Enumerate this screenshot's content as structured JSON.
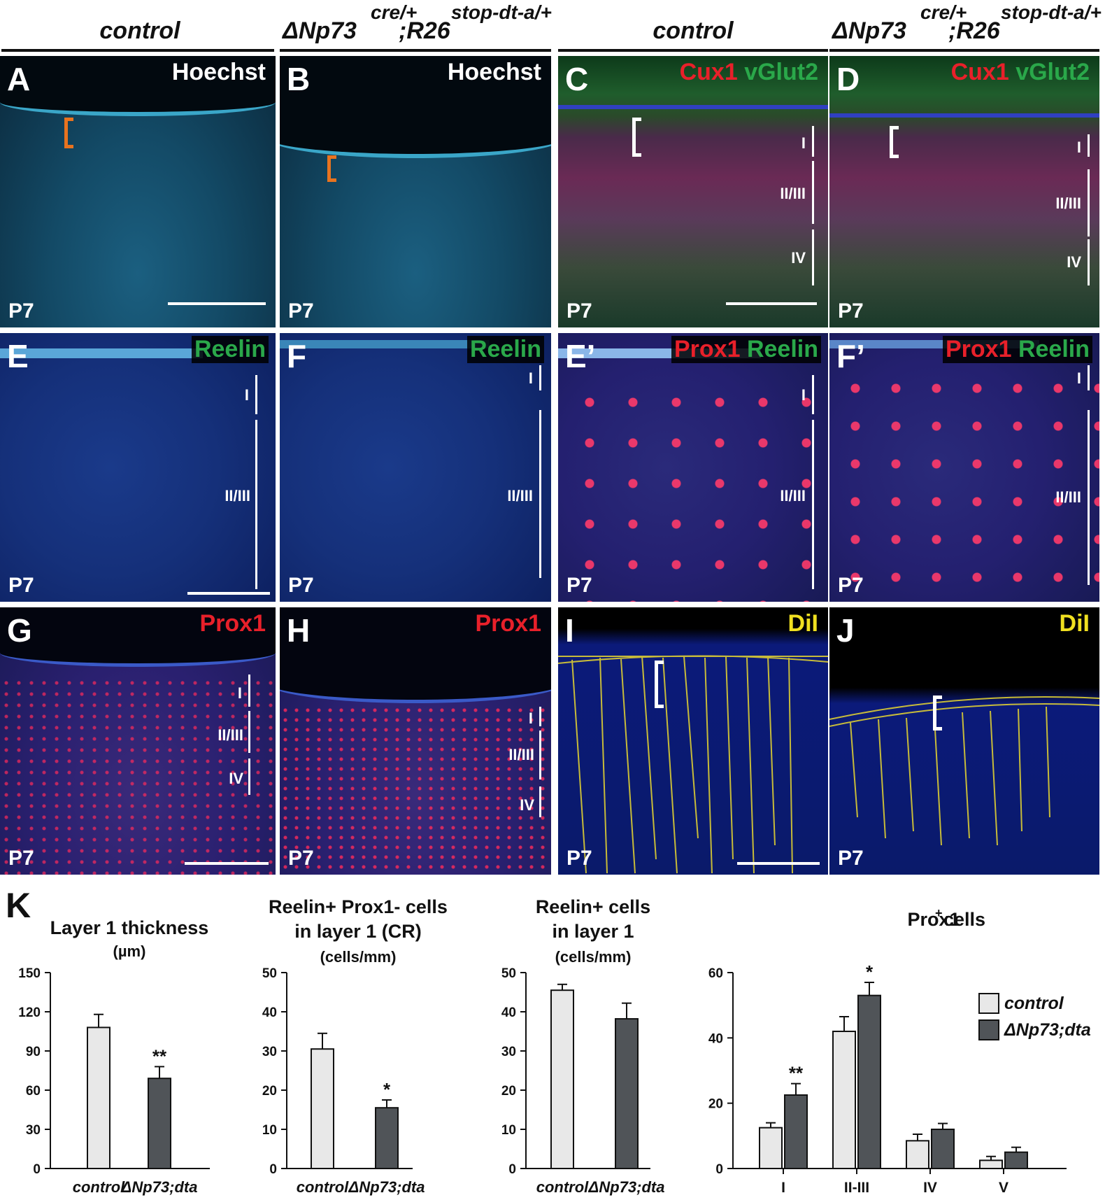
{
  "headers": [
    {
      "main": "control"
    },
    {
      "main": "ΔNp73",
      "sup1": "cre/+",
      "mid": ";R26",
      "sup2": "stop-dt-a/+"
    },
    {
      "main": "control"
    },
    {
      "main": "ΔNp73",
      "sup1": "cre/+",
      "mid": ";R26",
      "sup2": "stop-dt-a/+"
    }
  ],
  "panels": [
    {
      "letter": "A",
      "stain": "Hoechst",
      "age": "P7"
    },
    {
      "letter": "B",
      "stain": "Hoechst",
      "age": "P7"
    },
    {
      "letter": "C",
      "stain_red": "Cux1",
      "stain_green": "vGlut2",
      "age": "P7",
      "layers": [
        "I",
        "II/III",
        "IV"
      ]
    },
    {
      "letter": "D",
      "stain_red": "Cux1",
      "stain_green": "vGlut2",
      "age": "P7",
      "layers": [
        "I",
        "II/III",
        "IV"
      ]
    },
    {
      "letter": "E",
      "stain_green": "Reelin",
      "age": "P7",
      "layers": [
        "I",
        "II/III"
      ]
    },
    {
      "letter": "F",
      "stain_green": "Reelin",
      "age": "P7",
      "layers": [
        "I",
        "II/III"
      ]
    },
    {
      "letter": "E’",
      "stain_red": "Prox1",
      "stain_green": "Reelin",
      "age": "P7",
      "layers": [
        "I",
        "II/III"
      ]
    },
    {
      "letter": "F’",
      "stain_red": "Prox1",
      "stain_green": "Reelin",
      "age": "P7",
      "layers": [
        "I",
        "II/III"
      ]
    },
    {
      "letter": "G",
      "stain_red": "Prox1",
      "age": "P7",
      "layers": [
        "I",
        "II/III",
        "IV"
      ]
    },
    {
      "letter": "H",
      "stain_red": "Prox1",
      "age": "P7",
      "layers": [
        "I",
        "II/III",
        "IV"
      ]
    },
    {
      "letter": "I",
      "stain_yellow": "DiI",
      "age": "P7"
    },
    {
      "letter": "J",
      "stain_yellow": "DiI",
      "age": "P7"
    }
  ],
  "colors": {
    "hoechst": "#0a2a3a",
    "red_label": "#e8202a",
    "green_label": "#2aa84a",
    "yellow_label": "#f0e020",
    "bar_control": "#e8e8e8",
    "bar_mutant": "#505458"
  },
  "k_label": "K",
  "chart_data": [
    {
      "type": "bar",
      "title": "Layer 1 thickness",
      "subtitle": "(µm)",
      "categories": [
        "control",
        "ΔNp73;dta"
      ],
      "values": [
        108,
        69
      ],
      "errors": [
        10,
        9
      ],
      "significance": [
        "",
        "**"
      ],
      "ylim": [
        0,
        150
      ],
      "yticks": [
        0,
        30,
        60,
        90,
        120,
        150
      ]
    },
    {
      "type": "bar",
      "title": "Reelin+ Prox1- cells",
      "title2": "in layer 1 (CR)",
      "subtitle": "(cells/mm)",
      "categories": [
        "control",
        "ΔNp73;dta"
      ],
      "values": [
        30.5,
        15.5
      ],
      "errors": [
        4,
        2
      ],
      "significance": [
        "",
        "*"
      ],
      "ylim": [
        0,
        50
      ],
      "yticks": [
        0,
        10,
        20,
        30,
        40,
        50
      ]
    },
    {
      "type": "bar",
      "title": "Reelin+ cells",
      "title2": "in layer 1",
      "subtitle": "(cells/mm)",
      "categories": [
        "control",
        "ΔNp73;dta"
      ],
      "values": [
        45.5,
        38.2
      ],
      "errors": [
        1.5,
        4
      ],
      "significance": [
        "",
        ""
      ],
      "ylim": [
        0,
        50
      ],
      "yticks": [
        0,
        10,
        20,
        30,
        40,
        50
      ]
    },
    {
      "type": "bar",
      "title": "Prox1",
      "title_sup": "+",
      "title_rest": " cells",
      "categories": [
        "I",
        "II-III",
        "IV",
        "V"
      ],
      "series": [
        {
          "name": "control",
          "values": [
            12.5,
            42,
            8.5,
            2.5
          ],
          "errors": [
            1.5,
            4.5,
            2,
            1.2
          ]
        },
        {
          "name": "ΔNp73;dta",
          "values": [
            22.5,
            53,
            12,
            5
          ],
          "errors": [
            3.5,
            4,
            1.8,
            1.5
          ]
        }
      ],
      "significance": [
        "**",
        "*",
        "",
        ""
      ],
      "ylim": [
        0,
        60
      ],
      "yticks": [
        0,
        20,
        40,
        60
      ],
      "legend": "top-right"
    }
  ]
}
